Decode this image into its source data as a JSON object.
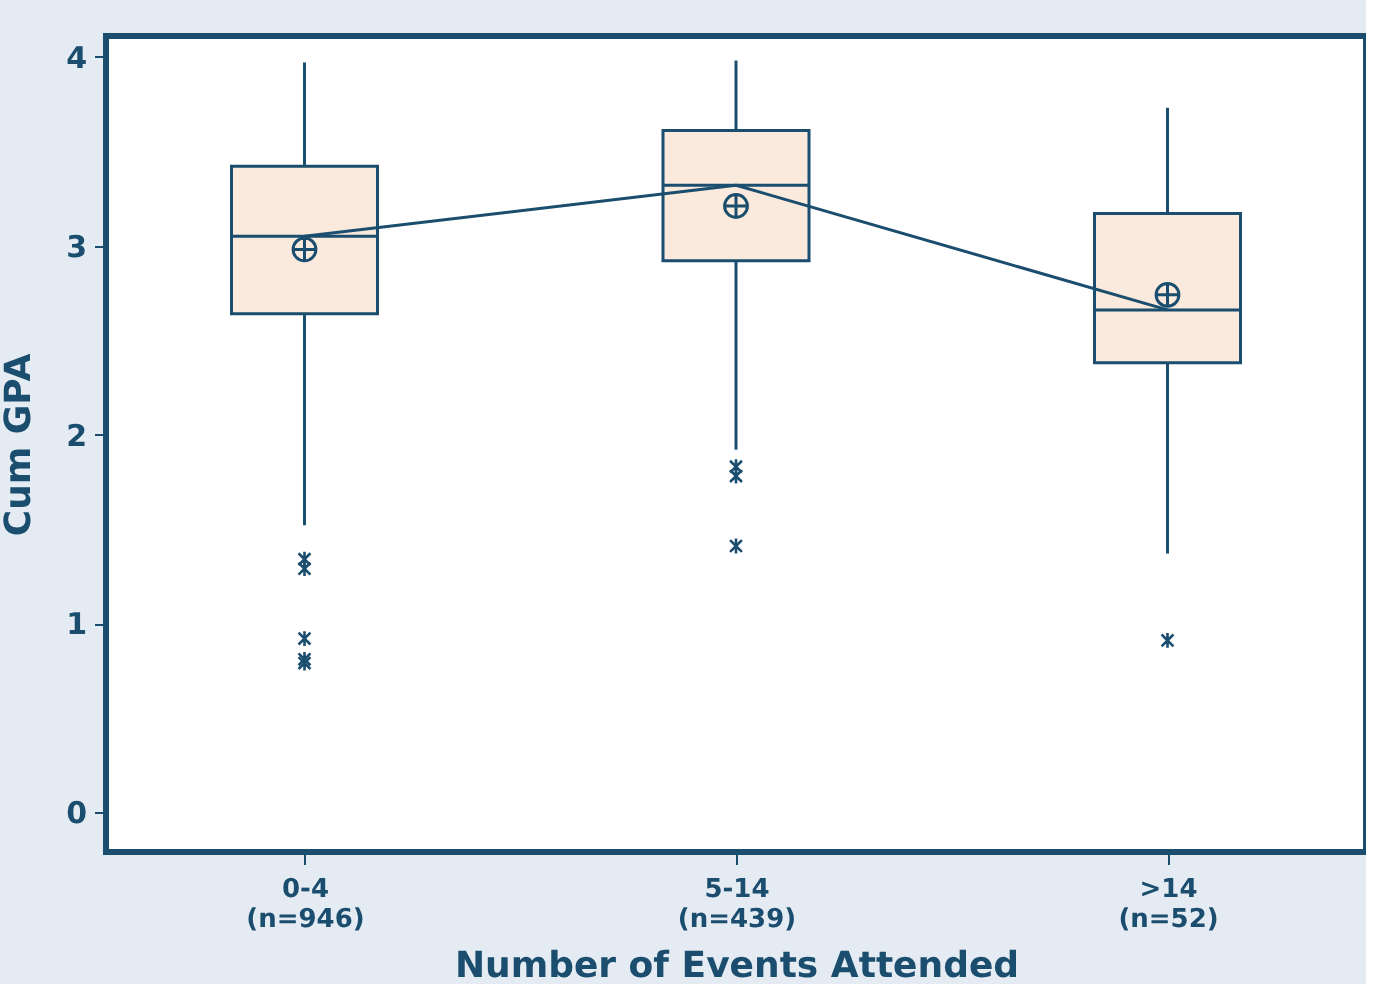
{
  "chart_data": {
    "type": "box",
    "xlabel": "Number of Events Attended",
    "ylabel": "Cum GPA",
    "categories": [
      "0-4\n(n=946)",
      "5-14\n(n=439)",
      ">14\n(n=52)"
    ],
    "ylim": [
      -0.21,
      4.11
    ],
    "yticks": [
      0,
      1,
      2,
      3,
      4
    ],
    "grid": false,
    "series": [
      {
        "color": "#fae9dd",
        "boxes": [
          {
            "low": 1.52,
            "q1": 2.64,
            "median": 3.05,
            "q3": 3.42,
            "high": 3.97,
            "mean": 2.98,
            "outliers": [
              1.34,
              1.29,
              0.92,
              0.81,
              0.79
            ]
          },
          {
            "low": 1.92,
            "q1": 2.92,
            "median": 3.32,
            "q3": 3.61,
            "high": 3.98,
            "mean": 3.21,
            "outliers": [
              1.83,
              1.78,
              1.41
            ]
          },
          {
            "low": 1.37,
            "q1": 2.38,
            "median": 2.66,
            "q3": 3.17,
            "high": 3.73,
            "mean": 2.74,
            "outliers": [
              0.91
            ]
          }
        ]
      },
      {
        "type": "line",
        "color": "#1a4d6e",
        "values": [
          3.05,
          3.32,
          2.66
        ],
        "marker": "none"
      }
    ]
  }
}
